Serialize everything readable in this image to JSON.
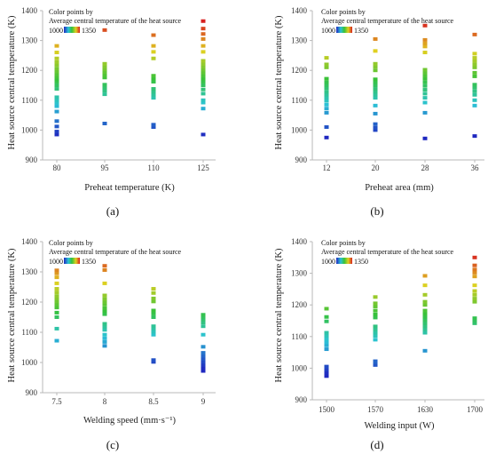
{
  "colors": {
    "low": "#1f28c0",
    "mid_low": "#2bc3d6",
    "mid": "#36c23a",
    "mid_high": "#e0d020",
    "high": "#d72020",
    "axis": "#b8b8b8",
    "grid": "#eeeeee"
  },
  "chart_data": [
    {
      "type": "scatter",
      "panel_label": "(a)",
      "title": "",
      "xlabel": "Preheat temperature (K)",
      "ylabel": "Heat source central temperature (K)",
      "ylim": [
        900,
        1400
      ],
      "yticks": [
        900,
        1000,
        1100,
        1200,
        1300,
        1400
      ],
      "categories": [
        "80",
        "95",
        "110",
        "125"
      ],
      "legend": {
        "title_line1": "Color points by",
        "title_line2": "Average  central  temperature  of  the heat source",
        "min_label": "1000",
        "max_label": "1350",
        "placement": "top-left"
      },
      "series": [
        {
          "values": [
            [
              0,
              985
            ],
            [
              0,
              995
            ],
            [
              0,
              1012
            ],
            [
              0,
              1030
            ],
            [
              0,
              1062
            ],
            [
              0,
              1080
            ],
            [
              0,
              1092
            ],
            [
              0,
              1100
            ],
            [
              0,
              1110
            ],
            [
              0,
              1138
            ],
            [
              0,
              1150
            ],
            [
              0,
              1162
            ],
            [
              0,
              1170
            ],
            [
              0,
              1178
            ],
            [
              0,
              1186
            ],
            [
              0,
              1196
            ],
            [
              0,
              1206
            ],
            [
              0,
              1218
            ],
            [
              0,
              1228
            ],
            [
              0,
              1240
            ],
            [
              0,
              1260
            ],
            [
              0,
              1282
            ],
            [
              1,
              1022
            ],
            [
              1,
              1120
            ],
            [
              1,
              1132
            ],
            [
              1,
              1142
            ],
            [
              1,
              1152
            ],
            [
              1,
              1176
            ],
            [
              1,
              1184
            ],
            [
              1,
              1194
            ],
            [
              1,
              1204
            ],
            [
              1,
              1212
            ],
            [
              1,
              1222
            ],
            [
              1,
              1335
            ],
            [
              2,
              1010
            ],
            [
              2,
              1018
            ],
            [
              2,
              1108
            ],
            [
              2,
              1118
            ],
            [
              2,
              1128
            ],
            [
              2,
              1138
            ],
            [
              2,
              1162
            ],
            [
              2,
              1172
            ],
            [
              2,
              1182
            ],
            [
              2,
              1240
            ],
            [
              2,
              1262
            ],
            [
              2,
              1282
            ],
            [
              2,
              1318
            ],
            [
              3,
              985
            ],
            [
              3,
              1072
            ],
            [
              3,
              1092
            ],
            [
              3,
              1100
            ],
            [
              3,
              1122
            ],
            [
              3,
              1136
            ],
            [
              3,
              1150
            ],
            [
              3,
              1162
            ],
            [
              3,
              1172
            ],
            [
              3,
              1182
            ],
            [
              3,
              1192
            ],
            [
              3,
              1202
            ],
            [
              3,
              1212
            ],
            [
              3,
              1222
            ],
            [
              3,
              1232
            ],
            [
              3,
              1262
            ],
            [
              3,
              1282
            ],
            [
              3,
              1305
            ],
            [
              3,
              1322
            ],
            [
              3,
              1340
            ],
            [
              3,
              1365
            ]
          ]
        }
      ]
    },
    {
      "type": "scatter",
      "panel_label": "(b)",
      "title": "",
      "xlabel": "Preheat area (mm)",
      "ylabel": "Heat source central temperature (K)",
      "ylim": [
        900,
        1400
      ],
      "yticks": [
        900,
        1000,
        1100,
        1200,
        1300,
        1400
      ],
      "categories": [
        "12",
        "20",
        "28",
        "36"
      ],
      "legend": {
        "title_line1": "Color points by",
        "title_line2": "Average  central  temperature  of  the heat source",
        "min_label": "1000",
        "max_label": "1350",
        "placement": "top-left"
      },
      "series": [
        {
          "values": [
            [
              0,
              975
            ],
            [
              0,
              1010
            ],
            [
              0,
              1058
            ],
            [
              0,
              1072
            ],
            [
              0,
              1085
            ],
            [
              0,
              1098
            ],
            [
              0,
              1108
            ],
            [
              0,
              1118
            ],
            [
              0,
              1128
            ],
            [
              0,
              1140
            ],
            [
              0,
              1150
            ],
            [
              0,
              1160
            ],
            [
              0,
              1172
            ],
            [
              0,
              1210
            ],
            [
              0,
              1220
            ],
            [
              0,
              1242
            ],
            [
              1,
              1000
            ],
            [
              1,
              1008
            ],
            [
              1,
              1020
            ],
            [
              1,
              1055
            ],
            [
              1,
              1082
            ],
            [
              1,
              1108
            ],
            [
              1,
              1118
            ],
            [
              1,
              1128
            ],
            [
              1,
              1138
            ],
            [
              1,
              1150
            ],
            [
              1,
              1160
            ],
            [
              1,
              1170
            ],
            [
              1,
              1200
            ],
            [
              1,
              1212
            ],
            [
              1,
              1222
            ],
            [
              1,
              1265
            ],
            [
              1,
              1305
            ],
            [
              2,
              972
            ],
            [
              2,
              1058
            ],
            [
              2,
              1092
            ],
            [
              2,
              1108
            ],
            [
              2,
              1122
            ],
            [
              2,
              1135
            ],
            [
              2,
              1148
            ],
            [
              2,
              1160
            ],
            [
              2,
              1172
            ],
            [
              2,
              1182
            ],
            [
              2,
              1192
            ],
            [
              2,
              1202
            ],
            [
              2,
              1260
            ],
            [
              2,
              1280
            ],
            [
              2,
              1290
            ],
            [
              2,
              1302
            ],
            [
              2,
              1350
            ],
            [
              3,
              980
            ],
            [
              3,
              1082
            ],
            [
              3,
              1100
            ],
            [
              3,
              1118
            ],
            [
              3,
              1130
            ],
            [
              3,
              1142
            ],
            [
              3,
              1152
            ],
            [
              3,
              1180
            ],
            [
              3,
              1192
            ],
            [
              3,
              1210
            ],
            [
              3,
              1220
            ],
            [
              3,
              1232
            ],
            [
              3,
              1242
            ],
            [
              3,
              1256
            ],
            [
              3,
              1320
            ]
          ]
        }
      ]
    },
    {
      "type": "scatter",
      "panel_label": "(c)",
      "title": "",
      "xlabel": "Welding speed (mm·s⁻¹)",
      "ylabel": "Heat source central temperature (K)",
      "ylim": [
        900,
        1400
      ],
      "yticks": [
        900,
        1000,
        1100,
        1200,
        1300,
        1400
      ],
      "categories": [
        "7.5",
        "8",
        "8.5",
        "9"
      ],
      "legend": {
        "title_line1": "Color points by",
        "title_line2": "Average  central  temperature  of  the heat source",
        "min_label": "1000",
        "max_label": "1350",
        "placement": "top-left"
      },
      "series": [
        {
          "values": [
            [
              0,
              1072
            ],
            [
              0,
              1112
            ],
            [
              0,
              1150
            ],
            [
              0,
              1165
            ],
            [
              0,
              1182
            ],
            [
              0,
              1192
            ],
            [
              0,
              1202
            ],
            [
              0,
              1212
            ],
            [
              0,
              1220
            ],
            [
              0,
              1232
            ],
            [
              0,
              1244
            ],
            [
              0,
              1262
            ],
            [
              0,
              1282
            ],
            [
              0,
              1295
            ],
            [
              0,
              1305
            ],
            [
              1,
              1055
            ],
            [
              1,
              1068
            ],
            [
              1,
              1080
            ],
            [
              1,
              1092
            ],
            [
              1,
              1108
            ],
            [
              1,
              1118
            ],
            [
              1,
              1128
            ],
            [
              1,
              1160
            ],
            [
              1,
              1170
            ],
            [
              1,
              1180
            ],
            [
              1,
              1192
            ],
            [
              1,
              1200
            ],
            [
              1,
              1210
            ],
            [
              1,
              1222
            ],
            [
              1,
              1262
            ],
            [
              1,
              1306
            ],
            [
              1,
              1320
            ],
            [
              2,
              1002
            ],
            [
              2,
              1008
            ],
            [
              2,
              1092
            ],
            [
              2,
              1102
            ],
            [
              2,
              1112
            ],
            [
              2,
              1120
            ],
            [
              2,
              1150
            ],
            [
              2,
              1162
            ],
            [
              2,
              1172
            ],
            [
              2,
              1202
            ],
            [
              2,
              1212
            ],
            [
              2,
              1230
            ],
            [
              2,
              1244
            ],
            [
              3,
              972
            ],
            [
              3,
              982
            ],
            [
              3,
              992
            ],
            [
              3,
              1002
            ],
            [
              3,
              1012
            ],
            [
              3,
              1022
            ],
            [
              3,
              1032
            ],
            [
              3,
              1052
            ],
            [
              3,
              1092
            ],
            [
              3,
              1120
            ],
            [
              3,
              1132
            ],
            [
              3,
              1142
            ],
            [
              3,
              1150
            ],
            [
              3,
              1158
            ]
          ]
        }
      ]
    },
    {
      "type": "scatter",
      "panel_label": "(d)",
      "title": "",
      "xlabel": "Welding input (W)",
      "ylabel": "Heat source central temperature (K)",
      "ylim": [
        900,
        1400
      ],
      "yticks": [
        900,
        1000,
        1100,
        1200,
        1300,
        1400
      ],
      "categories": [
        "1500",
        "1570",
        "1630",
        "1700"
      ],
      "legend": {
        "title_line1": "Color points by",
        "title_line2": "Average  central  temperature  of  the heat source",
        "min_label": "1000",
        "max_label": "1350",
        "placement": "top-left"
      },
      "series": [
        {
          "values": [
            [
              0,
              975
            ],
            [
              0,
              985
            ],
            [
              0,
              995
            ],
            [
              0,
              1005
            ],
            [
              0,
              1060
            ],
            [
              0,
              1072
            ],
            [
              0,
              1082
            ],
            [
              0,
              1092
            ],
            [
              0,
              1102
            ],
            [
              0,
              1112
            ],
            [
              0,
              1148
            ],
            [
              0,
              1162
            ],
            [
              0,
              1188
            ],
            [
              1,
              1010
            ],
            [
              1,
              1018
            ],
            [
              1,
              1022
            ],
            [
              1,
              1090
            ],
            [
              1,
              1102
            ],
            [
              1,
              1112
            ],
            [
              1,
              1122
            ],
            [
              1,
              1132
            ],
            [
              1,
              1160
            ],
            [
              1,
              1170
            ],
            [
              1,
              1182
            ],
            [
              1,
              1195
            ],
            [
              1,
              1205
            ],
            [
              1,
              1225
            ],
            [
              2,
              1055
            ],
            [
              2,
              1112
            ],
            [
              2,
              1122
            ],
            [
              2,
              1132
            ],
            [
              2,
              1142
            ],
            [
              2,
              1152
            ],
            [
              2,
              1162
            ],
            [
              2,
              1172
            ],
            [
              2,
              1182
            ],
            [
              2,
              1200
            ],
            [
              2,
              1210
            ],
            [
              2,
              1232
            ],
            [
              2,
              1262
            ],
            [
              2,
              1292
            ],
            [
              3,
              1142
            ],
            [
              3,
              1150
            ],
            [
              3,
              1158
            ],
            [
              3,
              1210
            ],
            [
              3,
              1220
            ],
            [
              3,
              1232
            ],
            [
              3,
              1244
            ],
            [
              3,
              1262
            ],
            [
              3,
              1290
            ],
            [
              3,
              1302
            ],
            [
              3,
              1312
            ],
            [
              3,
              1325
            ],
            [
              3,
              1350
            ]
          ]
        }
      ]
    }
  ]
}
